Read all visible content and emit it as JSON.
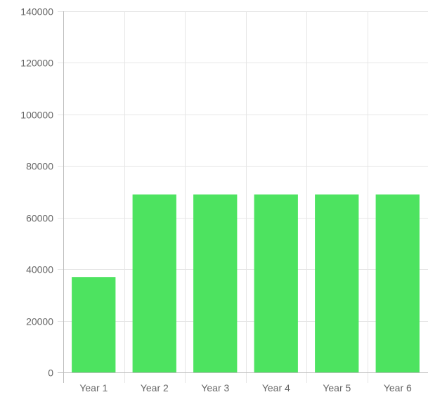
{
  "chart_data": {
    "type": "bar",
    "categories": [
      "Year 1",
      "Year 2",
      "Year 3",
      "Year 4",
      "Year 5",
      "Year 6"
    ],
    "values": [
      37000,
      69000,
      69000,
      69000,
      69000,
      69000
    ],
    "yticks": [
      "0",
      "20000",
      "40000",
      "60000",
      "80000",
      "100000",
      "120000",
      "140000"
    ],
    "ylim": [
      0,
      140000
    ],
    "bar_color": "#4de360",
    "grid": true,
    "legend": "none"
  }
}
